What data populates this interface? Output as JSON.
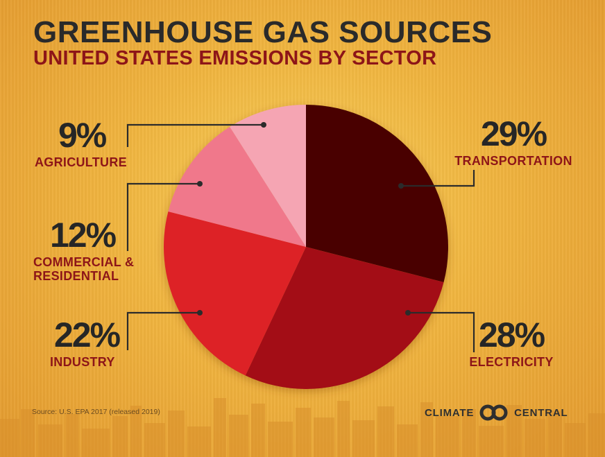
{
  "header": {
    "title": "GREENHOUSE GAS SOURCES",
    "subtitle": "UNITED STATES EMISSIONS BY SECTOR"
  },
  "chart_data": {
    "type": "pie",
    "title": "GREENHOUSE GAS SOURCES",
    "subtitle": "UNITED STATES EMISSIONS BY SECTOR",
    "slices": [
      {
        "label": "TRANSPORTATION",
        "value": 29,
        "display": "29%",
        "color": "#4a0205"
      },
      {
        "label": "ELECTRICITY",
        "value": 28,
        "display": "28%",
        "color": "#a30d14"
      },
      {
        "label": "INDUSTRY",
        "value": 22,
        "display": "22%",
        "color": "#dd2028"
      },
      {
        "label": "COMMERCIAL & RESIDENTIAL",
        "value": 12,
        "display": "12%",
        "color": "#f0788b"
      },
      {
        "label": "AGRICULTURE",
        "value": 9,
        "display": "9%",
        "color": "#f5a5b3"
      }
    ],
    "start_angle": "12 o'clock",
    "direction": "clockwise",
    "legend": "none (callout labels)"
  },
  "labels": {
    "transportation": {
      "pct": "29%",
      "name": "TRANSPORTATION"
    },
    "electricity": {
      "pct": "28%",
      "name": "ELECTRICITY"
    },
    "industry": {
      "pct": "22%",
      "name": "INDUSTRY"
    },
    "commercial": {
      "pct": "12%",
      "name_line1": "COMMERCIAL &",
      "name_line2": "RESIDENTIAL"
    },
    "agriculture": {
      "pct": "9%",
      "name": "AGRICULTURE"
    }
  },
  "footer": {
    "source": "Source: U.S. EPA 2017 (released 2019)",
    "brand_left": "CLIMATE",
    "brand_right": "CENTRAL"
  },
  "colors": {
    "title": "#2a2a2a",
    "accent_red": "#8d1518",
    "leader_line": "#2b2b2b"
  }
}
